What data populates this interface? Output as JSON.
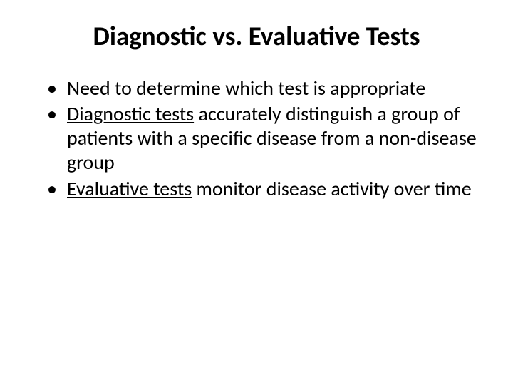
{
  "slide": {
    "title": "Diagnostic vs. Evaluative Tests",
    "bullets": [
      {
        "pre": "Need to determine which test is appropriate",
        "underline": "",
        "post": ""
      },
      {
        "pre": "",
        "underline": "Diagnostic tests",
        "post": " accurately distinguish a group of patients with a specific disease from a non-disease group"
      },
      {
        "pre": "",
        "underline": "Evaluative tests",
        "post": " monitor disease activity over time"
      }
    ]
  },
  "style": {
    "background_color": "#ffffff",
    "text_color": "#000000",
    "title_fontsize": 37,
    "title_fontweight": 700,
    "body_fontsize": 28,
    "font_family": "Calibri"
  }
}
